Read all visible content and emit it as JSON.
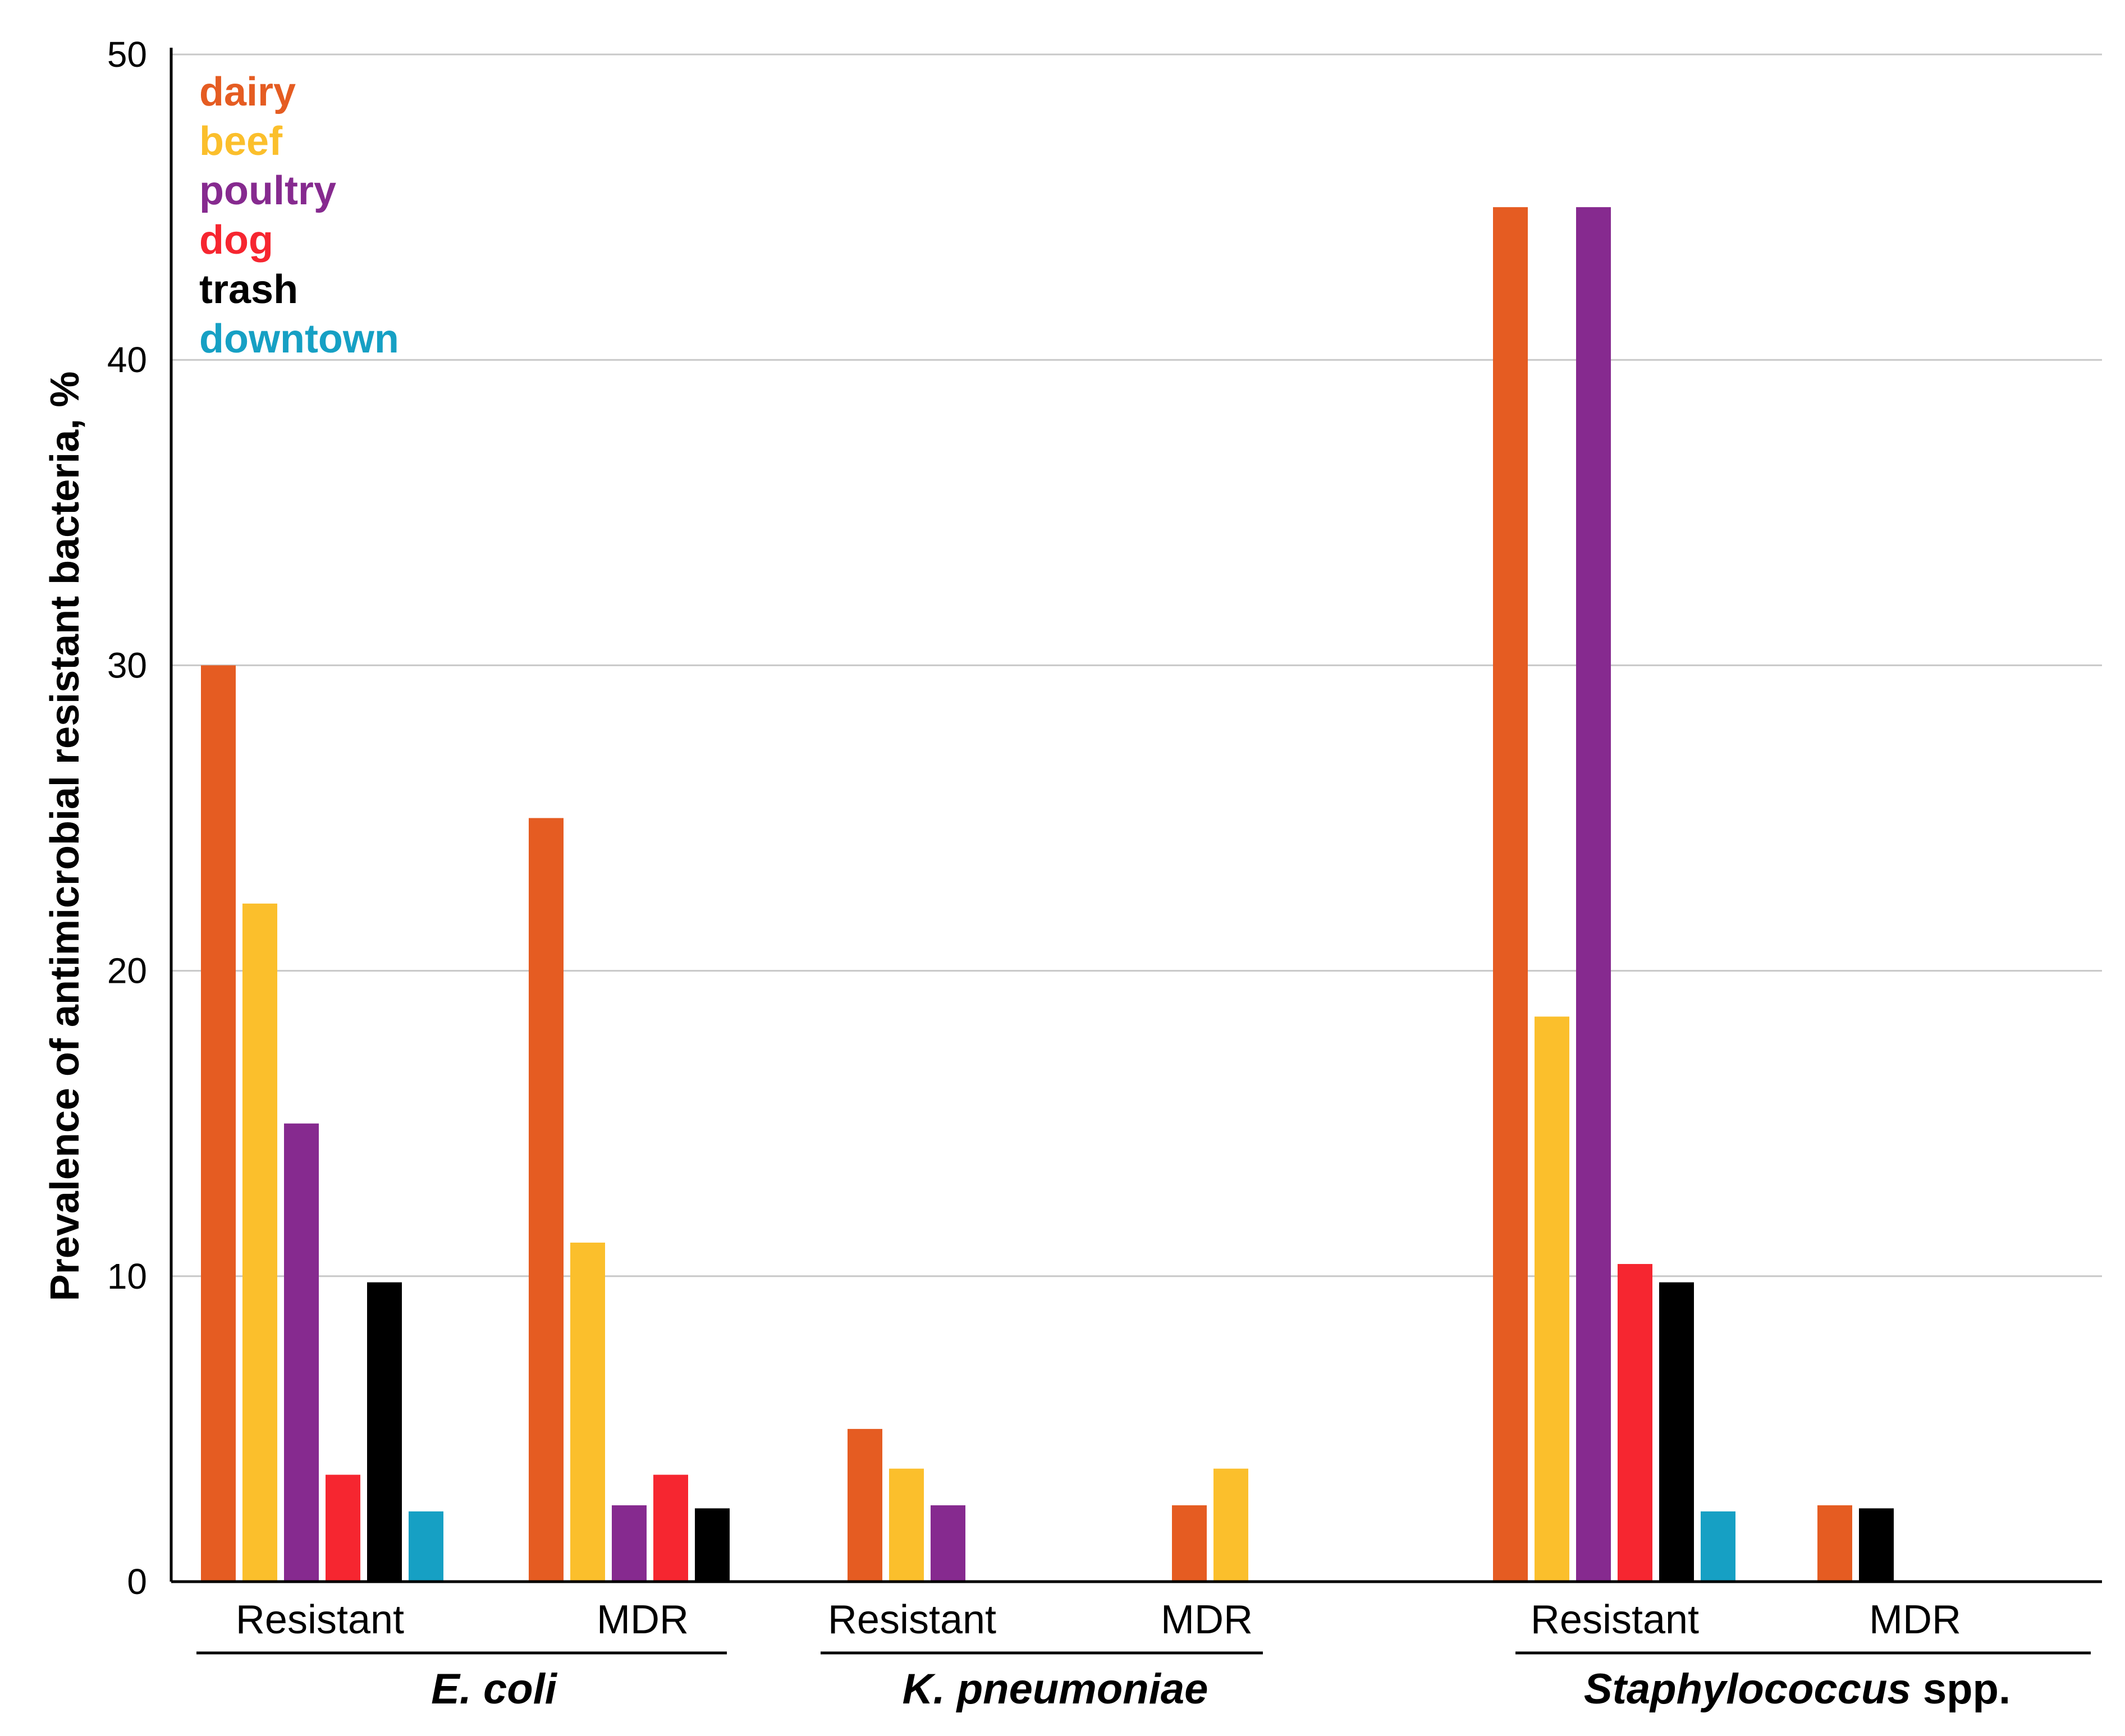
{
  "chart_data": {
    "type": "bar",
    "ylabel": "Prevalence of antimicrobial resistant bacteria, %",
    "ylim": [
      0,
      50
    ],
    "yticks": [
      0,
      10,
      20,
      30,
      40,
      50
    ],
    "grid": true,
    "legend_position": "top-left",
    "series": [
      {
        "name": "dairy",
        "color": "#e55c22"
      },
      {
        "name": "beef",
        "color": "#fbbf2c"
      },
      {
        "name": "poultry",
        "color": "#862a8f"
      },
      {
        "name": "dog",
        "color": "#f62630"
      },
      {
        "name": "trash",
        "color": "#000000"
      },
      {
        "name": "downtown",
        "color": "#16a0c4"
      }
    ],
    "groups": [
      {
        "name": "E. coli",
        "italic_part": "E. coli",
        "plain_part": "",
        "categories": [
          {
            "label": "Resistant",
            "values": {
              "dairy": 30,
              "beef": 22.2,
              "poultry": 15,
              "dog": 3.5,
              "trash": 9.8,
              "downtown": 2.3
            }
          },
          {
            "label": "MDR",
            "values": {
              "dairy": 25,
              "beef": 11.1,
              "poultry": 2.5,
              "dog": 3.5,
              "trash": 2.4
            }
          }
        ]
      },
      {
        "name": "K. pneumoniae",
        "italic_part": "K. pneumoniae",
        "plain_part": "",
        "categories": [
          {
            "label": "Resistant",
            "values": {
              "dairy": 5,
              "beef": 3.7,
              "poultry": 2.5
            }
          },
          {
            "label": "MDR",
            "values": {
              "dairy": 2.5,
              "beef": 3.7
            }
          }
        ]
      },
      {
        "name": "Staphylococcus spp.",
        "italic_part": "Staphylococcus",
        "plain_part": " spp.",
        "categories": [
          {
            "label": "Resistant",
            "values": {
              "dairy": 45,
              "beef": 18.5,
              "poultry": 45,
              "dog": 10.4,
              "trash": 9.8,
              "downtown": 2.3
            }
          },
          {
            "label": "MDR",
            "values": {
              "dairy": 2.5,
              "trash": 2.4
            }
          }
        ]
      }
    ]
  }
}
